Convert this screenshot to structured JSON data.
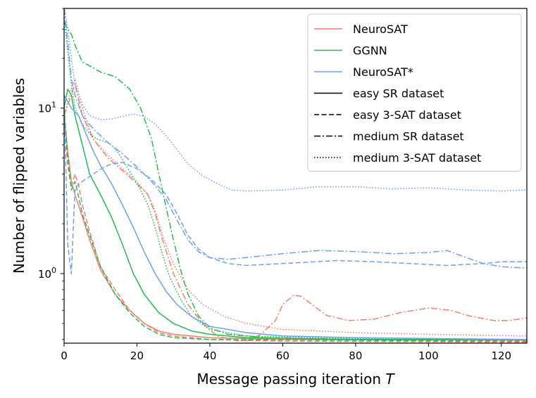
{
  "chart_data": {
    "type": "line",
    "xlabel": "Message passing iteration",
    "xlabel_var": "T",
    "ylabel": "Number of flipped variables",
    "xlim": [
      0,
      127
    ],
    "ylim": [
      0.38,
      40
    ],
    "yscale": "log",
    "grid": false,
    "legend_position": "top-right",
    "x_ticks": [
      0,
      20,
      40,
      60,
      80,
      100,
      120
    ],
    "y_ticks": [
      {
        "value": 1,
        "base": "10",
        "exp": "0"
      },
      {
        "value": 10,
        "base": "10",
        "exp": "1"
      }
    ],
    "legend": [
      {
        "label": "NeuroSAT",
        "color": "#f07f6e",
        "dash": "solid"
      },
      {
        "label": "GGNN",
        "color": "#22bb4f",
        "dash": "solid"
      },
      {
        "label": "NeuroSAT*",
        "color": "#6f9ff5",
        "dash": "solid"
      },
      {
        "label": "easy SR dataset",
        "color": "#000000",
        "dash": "solid"
      },
      {
        "label": "easy 3-SAT dataset",
        "color": "#000000",
        "dash": "dashed"
      },
      {
        "label": "medium SR dataset",
        "color": "#000000",
        "dash": "dashdot"
      },
      {
        "label": "medium 3-SAT dataset",
        "color": "#000000",
        "dash": "dotted"
      }
    ],
    "series": [
      {
        "model": "NeuroSAT",
        "dataset": "easy SR dataset",
        "color": "#f07f6e",
        "dash": "solid",
        "points": [
          [
            0,
            9
          ],
          [
            1,
            5.5
          ],
          [
            2,
            3.6
          ],
          [
            3,
            3.0
          ],
          [
            5,
            2.2
          ],
          [
            7,
            1.6
          ],
          [
            10,
            1.05
          ],
          [
            14,
            0.75
          ],
          [
            18,
            0.6
          ],
          [
            22,
            0.5
          ],
          [
            26,
            0.45
          ],
          [
            30,
            0.43
          ],
          [
            40,
            0.41
          ],
          [
            60,
            0.4
          ],
          [
            127,
            0.395
          ]
        ]
      },
      {
        "model": "NeuroSAT",
        "dataset": "easy 3-SAT dataset",
        "color": "#f07f6e",
        "dash": "dashed",
        "points": [
          [
            0,
            9
          ],
          [
            1,
            4.5
          ],
          [
            2,
            3.3
          ],
          [
            3,
            4.0
          ],
          [
            4,
            3.4
          ],
          [
            5,
            2.6
          ],
          [
            7,
            1.8
          ],
          [
            10,
            1.1
          ],
          [
            14,
            0.8
          ],
          [
            18,
            0.6
          ],
          [
            22,
            0.5
          ],
          [
            26,
            0.44
          ],
          [
            30,
            0.42
          ],
          [
            40,
            0.4
          ],
          [
            60,
            0.39
          ],
          [
            127,
            0.385
          ]
        ]
      },
      {
        "model": "NeuroSAT",
        "dataset": "medium SR dataset",
        "color": "#f07f6e",
        "dash": "dashdot",
        "points": [
          [
            0,
            9
          ],
          [
            2,
            12
          ],
          [
            3,
            14
          ],
          [
            5,
            9
          ],
          [
            8,
            6.5
          ],
          [
            12,
            5
          ],
          [
            16,
            4.2
          ],
          [
            20,
            3.5
          ],
          [
            23,
            3.0
          ],
          [
            25,
            2.3
          ],
          [
            27,
            1.6
          ],
          [
            30,
            1.0
          ],
          [
            34,
            0.65
          ],
          [
            38,
            0.5
          ],
          [
            42,
            0.42
          ],
          [
            48,
            0.39
          ],
          [
            52,
            0.4
          ],
          [
            55,
            0.45
          ],
          [
            58,
            0.52
          ],
          [
            60,
            0.65
          ],
          [
            63,
            0.74
          ],
          [
            65,
            0.73
          ],
          [
            68,
            0.65
          ],
          [
            72,
            0.56
          ],
          [
            78,
            0.52
          ],
          [
            85,
            0.53
          ],
          [
            92,
            0.58
          ],
          [
            100,
            0.62
          ],
          [
            106,
            0.6
          ],
          [
            112,
            0.55
          ],
          [
            118,
            0.52
          ],
          [
            122,
            0.52
          ],
          [
            127,
            0.54
          ]
        ]
      },
      {
        "model": "NeuroSAT",
        "dataset": "medium 3-SAT dataset",
        "color": "#f07f6e",
        "dash": "dotted",
        "points": [
          [
            0,
            9
          ],
          [
            2,
            13
          ],
          [
            3,
            15
          ],
          [
            5,
            10
          ],
          [
            8,
            6.5
          ],
          [
            12,
            5.2
          ],
          [
            16,
            4.3
          ],
          [
            20,
            3.6
          ],
          [
            23,
            3.0
          ],
          [
            25,
            2.4
          ],
          [
            27,
            1.7
          ],
          [
            30,
            1.15
          ],
          [
            34,
            0.8
          ],
          [
            38,
            0.65
          ],
          [
            44,
            0.55
          ],
          [
            50,
            0.5
          ],
          [
            60,
            0.46
          ],
          [
            80,
            0.44
          ],
          [
            100,
            0.43
          ],
          [
            127,
            0.42
          ]
        ]
      },
      {
        "model": "GGNN",
        "dataset": "easy SR dataset",
        "color": "#22bb4f",
        "dash": "solid",
        "points": [
          [
            0,
            10
          ],
          [
            1,
            13
          ],
          [
            2,
            12
          ],
          [
            3,
            9
          ],
          [
            5,
            6
          ],
          [
            7,
            4
          ],
          [
            10,
            3
          ],
          [
            13,
            2.2
          ],
          [
            16,
            1.5
          ],
          [
            19,
            1.0
          ],
          [
            22,
            0.75
          ],
          [
            26,
            0.58
          ],
          [
            30,
            0.5
          ],
          [
            35,
            0.45
          ],
          [
            40,
            0.43
          ],
          [
            50,
            0.41
          ],
          [
            80,
            0.4
          ],
          [
            127,
            0.4
          ]
        ]
      },
      {
        "model": "GGNN",
        "dataset": "easy 3-SAT dataset",
        "color": "#22bb4f",
        "dash": "dashed",
        "points": [
          [
            0,
            10
          ],
          [
            1,
            5
          ],
          [
            2,
            3.2
          ],
          [
            3,
            3.6
          ],
          [
            4,
            2.9
          ],
          [
            5,
            2.3
          ],
          [
            7,
            1.7
          ],
          [
            10,
            1.1
          ],
          [
            14,
            0.75
          ],
          [
            18,
            0.58
          ],
          [
            22,
            0.48
          ],
          [
            26,
            0.43
          ],
          [
            30,
            0.41
          ],
          [
            40,
            0.4
          ],
          [
            127,
            0.39
          ]
        ]
      },
      {
        "model": "GGNN",
        "dataset": "medium SR dataset",
        "color": "#22bb4f",
        "dash": "dashdot",
        "points": [
          [
            0,
            33
          ],
          [
            1,
            30
          ],
          [
            2,
            28
          ],
          [
            3,
            24
          ],
          [
            5,
            19
          ],
          [
            7,
            18
          ],
          [
            10,
            16.5
          ],
          [
            14,
            15.5
          ],
          [
            18,
            13
          ],
          [
            21,
            10
          ],
          [
            24,
            6.5
          ],
          [
            26,
            4
          ],
          [
            28,
            2.5
          ],
          [
            30,
            1.6
          ],
          [
            32,
            1.05
          ],
          [
            34,
            0.75
          ],
          [
            37,
            0.55
          ],
          [
            40,
            0.47
          ],
          [
            45,
            0.43
          ],
          [
            55,
            0.41
          ],
          [
            80,
            0.4
          ],
          [
            127,
            0.4
          ]
        ]
      },
      {
        "model": "GGNN",
        "dataset": "medium 3-SAT dataset",
        "color": "#22bb4f",
        "dash": "dotted",
        "points": [
          [
            0,
            35
          ],
          [
            1,
            22
          ],
          [
            2,
            14
          ],
          [
            3,
            10
          ],
          [
            5,
            8
          ],
          [
            7,
            7
          ],
          [
            9,
            6.5
          ],
          [
            11,
            6.3
          ],
          [
            13,
            6.0
          ],
          [
            15,
            5.3
          ],
          [
            17,
            4.5
          ],
          [
            19,
            3.8
          ],
          [
            21,
            3.2
          ],
          [
            23,
            2.6
          ],
          [
            25,
            1.9
          ],
          [
            27,
            1.3
          ],
          [
            29,
            0.95
          ],
          [
            32,
            0.7
          ],
          [
            35,
            0.55
          ],
          [
            40,
            0.46
          ],
          [
            50,
            0.42
          ],
          [
            80,
            0.405
          ],
          [
            127,
            0.4
          ]
        ]
      },
      {
        "model": "NeuroSAT*",
        "dataset": "easy SR dataset",
        "color": "#6f9ff5",
        "dash": "solid",
        "points": [
          [
            0,
            12
          ],
          [
            2,
            10
          ],
          [
            4,
            9
          ],
          [
            6,
            7
          ],
          [
            8,
            5.5
          ],
          [
            10,
            4.5
          ],
          [
            13,
            3.5
          ],
          [
            16,
            2.6
          ],
          [
            19,
            1.9
          ],
          [
            22,
            1.35
          ],
          [
            25,
            1.0
          ],
          [
            28,
            0.78
          ],
          [
            31,
            0.65
          ],
          [
            35,
            0.55
          ],
          [
            40,
            0.48
          ],
          [
            50,
            0.44
          ],
          [
            60,
            0.42
          ],
          [
            80,
            0.41
          ],
          [
            127,
            0.4
          ]
        ]
      },
      {
        "model": "NeuroSAT*",
        "dataset": "easy 3-SAT dataset",
        "color": "#6f9ff5",
        "dash": "dashed",
        "points": [
          [
            0,
            12
          ],
          [
            1,
            1.5
          ],
          [
            2,
            1.0
          ],
          [
            3,
            3.3
          ],
          [
            5,
            3.6
          ],
          [
            8,
            4.0
          ],
          [
            11,
            4.4
          ],
          [
            13,
            4.6
          ],
          [
            16,
            4.7
          ],
          [
            20,
            4.3
          ],
          [
            24,
            3.7
          ],
          [
            28,
            3.0
          ],
          [
            31,
            2.3
          ],
          [
            34,
            1.7
          ],
          [
            37,
            1.4
          ],
          [
            40,
            1.25
          ],
          [
            45,
            1.15
          ],
          [
            50,
            1.12
          ],
          [
            60,
            1.15
          ],
          [
            75,
            1.2
          ],
          [
            85,
            1.18
          ],
          [
            95,
            1.15
          ],
          [
            105,
            1.12
          ],
          [
            115,
            1.15
          ],
          [
            120,
            1.18
          ],
          [
            127,
            1.18
          ]
        ]
      },
      {
        "model": "NeuroSAT*",
        "dataset": "medium SR dataset",
        "color": "#6f9ff5",
        "dash": "dashdot",
        "points": [
          [
            0,
            40
          ],
          [
            1,
            25
          ],
          [
            2,
            15
          ],
          [
            3,
            12
          ],
          [
            5,
            9
          ],
          [
            8,
            7.5
          ],
          [
            12,
            6.2
          ],
          [
            16,
            5.3
          ],
          [
            20,
            4.4
          ],
          [
            24,
            3.6
          ],
          [
            28,
            2.8
          ],
          [
            31,
            2.1
          ],
          [
            34,
            1.6
          ],
          [
            37,
            1.35
          ],
          [
            40,
            1.25
          ],
          [
            45,
            1.22
          ],
          [
            50,
            1.25
          ],
          [
            60,
            1.32
          ],
          [
            70,
            1.38
          ],
          [
            80,
            1.36
          ],
          [
            90,
            1.32
          ],
          [
            100,
            1.34
          ],
          [
            105,
            1.38
          ],
          [
            110,
            1.26
          ],
          [
            115,
            1.15
          ],
          [
            120,
            1.1
          ],
          [
            127,
            1.08
          ]
        ]
      },
      {
        "model": "NeuroSAT*",
        "dataset": "medium 3-SAT dataset",
        "color": "#6f9ff5",
        "dash": "dotted",
        "points": [
          [
            0,
            42
          ],
          [
            1,
            30
          ],
          [
            2,
            20
          ],
          [
            3,
            14
          ],
          [
            5,
            10.5
          ],
          [
            7,
            9
          ],
          [
            10,
            8.5
          ],
          [
            13,
            8.6
          ],
          [
            16,
            8.9
          ],
          [
            19,
            9.2
          ],
          [
            22,
            8.9
          ],
          [
            25,
            8.0
          ],
          [
            28,
            6.8
          ],
          [
            31,
            5.6
          ],
          [
            34,
            4.6
          ],
          [
            38,
            3.9
          ],
          [
            42,
            3.5
          ],
          [
            46,
            3.2
          ],
          [
            50,
            3.15
          ],
          [
            60,
            3.2
          ],
          [
            70,
            3.35
          ],
          [
            80,
            3.35
          ],
          [
            90,
            3.25
          ],
          [
            100,
            3.3
          ],
          [
            110,
            3.2
          ],
          [
            120,
            3.15
          ],
          [
            127,
            3.2
          ]
        ]
      }
    ]
  }
}
